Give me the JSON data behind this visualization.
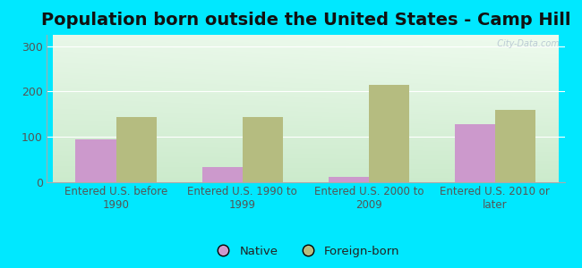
{
  "title": "Population born outside the United States - Camp Hill",
  "categories": [
    "Entered U.S. before\n1990",
    "Entered U.S. 1990 to\n1999",
    "Entered U.S. 2000 to\n2009",
    "Entered U.S. 2010 or\nlater"
  ],
  "native_values": [
    95,
    33,
    11,
    128
  ],
  "foreign_values": [
    143,
    143,
    215,
    160
  ],
  "native_color": "#cc99cc",
  "foreign_color": "#b5bc80",
  "bg_color_topleft": "#d4edda",
  "bg_color_topright": "#eaf7ea",
  "bg_color_bottom": "#c8e6c9",
  "outer_bg": "#00e8ff",
  "ylim": [
    0,
    325
  ],
  "yticks": [
    0,
    100,
    200,
    300
  ],
  "bar_width": 0.32,
  "title_fontsize": 14,
  "legend_native": "Native",
  "legend_foreign": "Foreign-born",
  "watermark": "  City-Data.com",
  "grid_color": "#ffffff",
  "tick_color": "#555555",
  "label_fontsize": 8.5
}
